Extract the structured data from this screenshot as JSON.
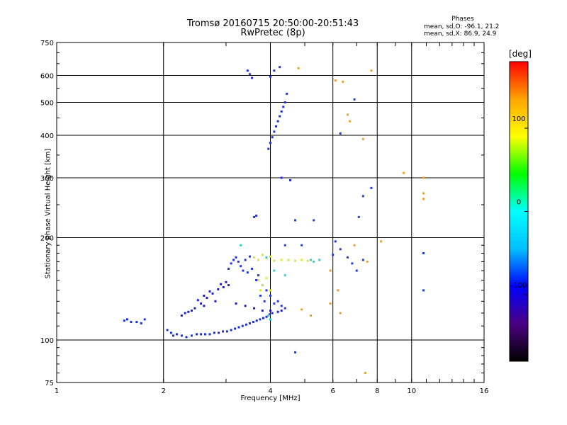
{
  "chart_data": {
    "type": "scatter",
    "title": "Tromsø 20160715 20:50:00-20:51:43",
    "subtitle": "RwPretec (8p)",
    "xlabel": "Frequency [MHz]",
    "ylabel": "Stationary phase Virtual Height [km]",
    "x_scale": "log",
    "y_scale": "log",
    "xlim": [
      1,
      16
    ],
    "ylim": [
      75,
      750
    ],
    "x_ticks": [
      "1",
      "2",
      "4",
      "6",
      "8",
      "10",
      "16"
    ],
    "y_ticks": [
      "75",
      "100",
      "200",
      "300",
      "400",
      "500",
      "600",
      "750"
    ],
    "grid": true,
    "phase_stats": {
      "heading": "Phases",
      "o_label": "mean, sd,O:",
      "o_value": "-96.1, 21.2",
      "x_label": "mean, sd,X:",
      "x_value": "86.9, 24.9"
    },
    "colorbar": {
      "title": "[deg]",
      "ticks": [
        "100",
        "0",
        "-100"
      ],
      "range": [
        -180,
        180
      ],
      "colors": [
        "#000000",
        "#4b0082",
        "#0000ff",
        "#00bfff",
        "#00ffff",
        "#00ff00",
        "#ffff00",
        "#ffa500",
        "#ff0000"
      ]
    },
    "series": [
      {
        "trace": "low-branch",
        "color": "#1a2fe0",
        "points": [
          [
            1.55,
            114
          ],
          [
            1.58,
            115
          ],
          [
            1.62,
            113
          ],
          [
            1.68,
            113
          ],
          [
            1.73,
            112
          ],
          [
            1.77,
            115
          ],
          [
            2.05,
            107
          ],
          [
            2.1,
            105
          ],
          [
            2.13,
            103
          ],
          [
            2.18,
            104
          ],
          [
            2.25,
            103
          ],
          [
            2.32,
            102
          ],
          [
            2.4,
            103
          ],
          [
            2.48,
            104
          ],
          [
            2.55,
            104
          ],
          [
            2.62,
            104
          ],
          [
            2.7,
            104
          ],
          [
            2.78,
            105
          ],
          [
            2.86,
            105
          ],
          [
            2.94,
            106
          ],
          [
            3.02,
            106
          ],
          [
            3.1,
            107
          ],
          [
            3.18,
            108
          ],
          [
            3.26,
            109
          ],
          [
            3.34,
            110
          ],
          [
            3.42,
            111
          ],
          [
            3.5,
            112
          ],
          [
            3.58,
            113
          ],
          [
            3.66,
            114
          ],
          [
            3.74,
            115
          ],
          [
            3.82,
            116
          ],
          [
            3.9,
            117
          ],
          [
            3.98,
            119
          ],
          [
            4.05,
            120
          ]
        ]
      },
      {
        "trace": "mid-branch",
        "color": "#1f1fd0",
        "points": [
          [
            2.25,
            118
          ],
          [
            2.35,
            121
          ],
          [
            2.45,
            124
          ],
          [
            2.55,
            128
          ],
          [
            2.65,
            133
          ],
          [
            2.75,
            137
          ],
          [
            2.85,
            141
          ],
          [
            2.95,
            143
          ],
          [
            3.05,
            145
          ],
          [
            2.5,
            131
          ],
          [
            2.6,
            135
          ],
          [
            2.7,
            139
          ],
          [
            2.9,
            146
          ],
          [
            3.0,
            148
          ],
          [
            2.3,
            120
          ],
          [
            2.4,
            122
          ],
          [
            2.6,
            126
          ],
          [
            2.8,
            130
          ],
          [
            3.2,
            128
          ],
          [
            3.4,
            126
          ],
          [
            3.6,
            124
          ],
          [
            3.8,
            122
          ],
          [
            4.0,
            122
          ],
          [
            4.2,
            121
          ],
          [
            4.3,
            122
          ]
        ]
      },
      {
        "trace": "upper-cloud",
        "color": "#2438e8",
        "points": [
          [
            3.05,
            162
          ],
          [
            3.1,
            168
          ],
          [
            3.15,
            172
          ],
          [
            3.2,
            175
          ],
          [
            3.25,
            170
          ],
          [
            3.3,
            165
          ],
          [
            3.4,
            172
          ],
          [
            3.5,
            176
          ],
          [
            3.35,
            160
          ],
          [
            3.45,
            158
          ],
          [
            3.55,
            162
          ],
          [
            3.65,
            150
          ],
          [
            3.7,
            155
          ],
          [
            3.8,
            145
          ],
          [
            3.9,
            140
          ],
          [
            3.75,
            135
          ],
          [
            3.85,
            130
          ],
          [
            4.0,
            135
          ],
          [
            4.1,
            128
          ],
          [
            4.2,
            130
          ],
          [
            4.3,
            126
          ],
          [
            4.4,
            124
          ]
        ]
      },
      {
        "trace": "yellow-cloud",
        "color": "#d7e83a",
        "points": [
          [
            3.6,
            175
          ],
          [
            3.7,
            172
          ],
          [
            3.8,
            178
          ],
          [
            3.9,
            174
          ],
          [
            4.0,
            176
          ],
          [
            4.1,
            171
          ],
          [
            4.3,
            172
          ],
          [
            4.5,
            172
          ],
          [
            4.7,
            171
          ],
          [
            4.9,
            172
          ],
          [
            5.1,
            171
          ],
          [
            3.7,
            150
          ],
          [
            3.8,
            145
          ],
          [
            3.9,
            152
          ],
          [
            3.75,
            140
          ],
          [
            4.0,
            140
          ]
        ]
      },
      {
        "trace": "cyan-points",
        "color": "#27d4d4",
        "points": [
          [
            3.3,
            190
          ],
          [
            3.9,
            175
          ],
          [
            4.1,
            160
          ],
          [
            4.4,
            155
          ],
          [
            5.2,
            172
          ],
          [
            5.5,
            172
          ],
          [
            4.0,
            115
          ],
          [
            3.95,
            118
          ],
          [
            5.3,
            170
          ]
        ]
      },
      {
        "trace": "steep-branch",
        "color": "#1d2fe8",
        "points": [
          [
            3.95,
            365
          ],
          [
            4.0,
            380
          ],
          [
            4.05,
            395
          ],
          [
            4.1,
            410
          ],
          [
            4.15,
            425
          ],
          [
            4.2,
            440
          ],
          [
            4.25,
            455
          ],
          [
            4.3,
            470
          ],
          [
            4.35,
            485
          ],
          [
            4.4,
            500
          ],
          [
            4.45,
            530
          ],
          [
            4.1,
            620
          ],
          [
            4.0,
            595
          ],
          [
            4.25,
            635
          ],
          [
            3.5,
            605
          ],
          [
            3.55,
            590
          ],
          [
            3.45,
            620
          ],
          [
            3.6,
            230
          ],
          [
            3.65,
            232
          ],
          [
            4.3,
            300
          ],
          [
            4.55,
            295
          ]
        ]
      },
      {
        "trace": "scattered-x",
        "color": "#f0a030",
        "points": [
          [
            4.8,
            630
          ],
          [
            6.1,
            580
          ],
          [
            6.4,
            575
          ],
          [
            6.6,
            460
          ],
          [
            6.7,
            440
          ],
          [
            7.3,
            390
          ],
          [
            7.7,
            620
          ],
          [
            9.5,
            310
          ],
          [
            10.8,
            300
          ],
          [
            10.8,
            270
          ],
          [
            10.8,
            260
          ],
          [
            8.2,
            195
          ],
          [
            6.9,
            190
          ],
          [
            7.5,
            170
          ],
          [
            5.9,
            160
          ],
          [
            6.2,
            140
          ],
          [
            4.9,
            123
          ],
          [
            5.2,
            118
          ],
          [
            5.9,
            128
          ],
          [
            6.3,
            120
          ],
          [
            7.4,
            80
          ]
        ]
      },
      {
        "trace": "scattered-o",
        "color": "#1f3fe0",
        "points": [
          [
            6.9,
            510
          ],
          [
            6.3,
            405
          ],
          [
            7.7,
            280
          ],
          [
            7.3,
            265
          ],
          [
            10.8,
            180
          ],
          [
            10.8,
            140
          ],
          [
            6.1,
            195
          ],
          [
            6.3,
            185
          ],
          [
            6.6,
            175
          ],
          [
            6.8,
            168
          ],
          [
            7.0,
            160
          ],
          [
            7.3,
            172
          ],
          [
            6.0,
            178
          ],
          [
            4.7,
            92
          ],
          [
            7.1,
            230
          ],
          [
            5.3,
            225
          ],
          [
            4.7,
            225
          ],
          [
            4.4,
            190
          ],
          [
            4.9,
            190
          ]
        ]
      }
    ]
  }
}
